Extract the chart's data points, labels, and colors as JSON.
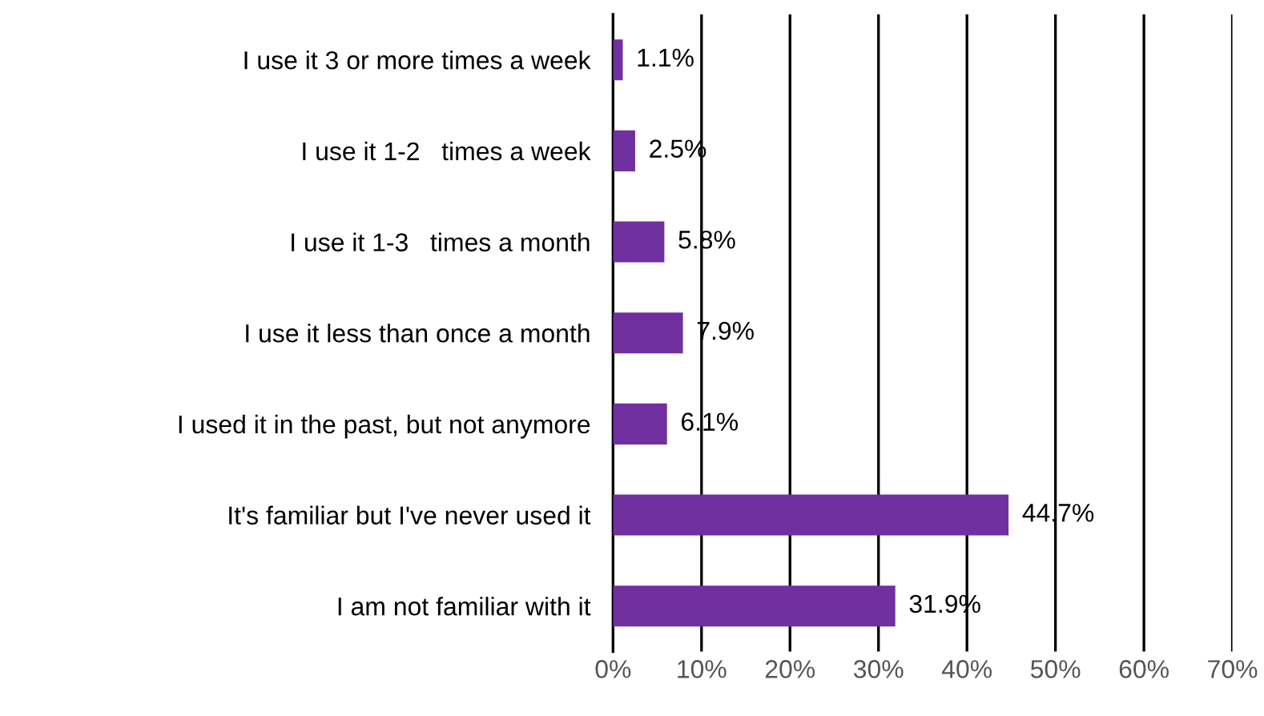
{
  "chart_data": {
    "type": "bar",
    "orientation": "horizontal",
    "categories": [
      "I use it 3 or more times a week",
      "I use it 1-2   times a week",
      "I use it 1-3   times a month",
      "I use it less than once a month",
      "I used it in the past, but not anymore",
      "It's familiar but I've never used it",
      "I am not familiar with it"
    ],
    "values": [
      1.1,
      2.5,
      5.8,
      7.9,
      6.1,
      44.7,
      31.9
    ],
    "value_labels": [
      "1.1%",
      "2.5%",
      "5.8%",
      "7.9%",
      "6.1%",
      "44.7%",
      "31.9%"
    ],
    "color": "#7030a0",
    "xlim": [
      0,
      70
    ],
    "xticks": [
      {
        "value": 0,
        "label": "0%"
      },
      {
        "value": 10,
        "label": "10%"
      },
      {
        "value": 20,
        "label": "20%"
      },
      {
        "value": 30,
        "label": "30%"
      },
      {
        "value": 40,
        "label": "40%"
      },
      {
        "value": 50,
        "label": "50%"
      },
      {
        "value": 60,
        "label": "60%"
      },
      {
        "value": 70,
        "label": "70%"
      }
    ],
    "grid": "x"
  }
}
